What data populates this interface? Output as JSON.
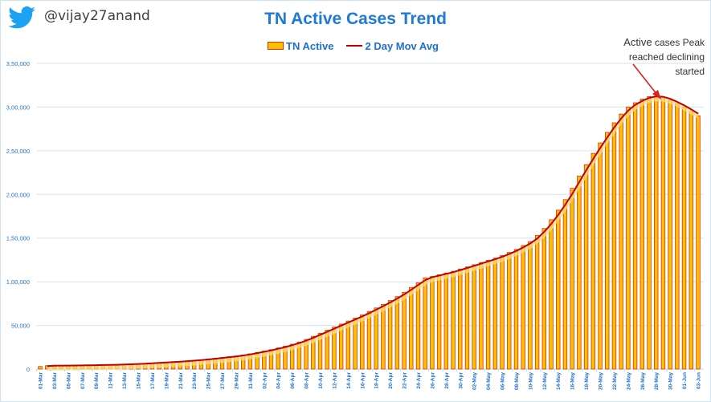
{
  "header": {
    "twitter_handle": "@vijay27anand",
    "icon": "twitter-bird-icon"
  },
  "colors": {
    "title": "#1e7ad6",
    "bar_fill": "#ffc000",
    "bar_edge": "#e03010",
    "line": "#c00000",
    "grid": "#cfe3f5",
    "axis_text": "#1e6fd0",
    "arrow": "#e02020"
  },
  "annotation": {
    "line1_a": "Active",
    "line1_b": " cases Peak",
    "line2": "reached declining started"
  },
  "legend": {
    "bar_label": "TN  Active",
    "line_label": "2 Day Mov Avg"
  },
  "chart_data": {
    "type": "bar",
    "title": "TN Active Cases Trend",
    "xlabel": "",
    "ylabel": "",
    "ylim": [
      0,
      350000
    ],
    "yticks": [
      0,
      50000,
      100000,
      150000,
      200000,
      250000,
      300000,
      350000
    ],
    "ytick_labels": [
      "0",
      "50,000",
      "1,00,000",
      "1,50,000",
      "2,00,000",
      "2,50,000",
      "3,00,000",
      "3,50,000"
    ],
    "grid": true,
    "legend_position": "top-center",
    "start_date": "01-Mar",
    "end_date": "03-Jun",
    "xtick_labels": [
      "01-Mar",
      "03-Mar",
      "05-Mar",
      "07-Mar",
      "09-Mar",
      "11-Mar",
      "13-Mar",
      "15-Mar",
      "17-Mar",
      "19-Mar",
      "21-Mar",
      "23-Mar",
      "25-Mar",
      "27-Mar",
      "29-Mar",
      "31-Mar",
      "02-Apr",
      "04-Apr",
      "06-Apr",
      "08-Apr",
      "10-Apr",
      "12-Apr",
      "14-Apr",
      "16-Apr",
      "18-Apr",
      "20-Apr",
      "22-Apr",
      "24-Apr",
      "26-Apr",
      "28-Apr",
      "30-Apr",
      "02-May",
      "04-May",
      "06-May",
      "08-May",
      "10-May",
      "12-May",
      "14-May",
      "16-May",
      "18-May",
      "20-May",
      "22-May",
      "24-May",
      "26-May",
      "28-May",
      "30-May",
      "01-Jun",
      "03-Jun"
    ],
    "series": [
      {
        "name": "TN  Active",
        "type": "bar",
        "values": [
          3600,
          3700,
          3800,
          3800,
          3900,
          3900,
          4000,
          4000,
          4100,
          4200,
          4300,
          4400,
          4600,
          4700,
          4900,
          5100,
          5400,
          5700,
          6000,
          6400,
          6900,
          7400,
          7800,
          8300,
          8800,
          9300,
          9900,
          10600,
          11400,
          12300,
          13200,
          14100,
          15000,
          16200,
          17500,
          19000,
          20600,
          22300,
          24200,
          26200,
          28500,
          31000,
          34000,
          37500,
          41000,
          44500,
          48000,
          51500,
          55000,
          58500,
          62000,
          66000,
          70000,
          74000,
          78500,
          83000,
          88000,
          93500,
          99000,
          104500,
          106000,
          108000,
          110000,
          112000,
          114500,
          117000,
          119500,
          122000,
          124500,
          127000,
          130000,
          133500,
          137000,
          141500,
          146000,
          153000,
          161000,
          171000,
          182000,
          194000,
          207000,
          221000,
          234000,
          247000,
          259000,
          271000,
          282000,
          292000,
          300000,
          305000,
          309000,
          312000,
          312500,
          311000,
          308000,
          304000,
          300000,
          295000,
          290000
        ],
        "note": "01-Mar bar starts low; values estimated from gridlines"
      },
      {
        "name": "2 Day Mov Avg",
        "type": "line",
        "values": "two-day moving average of the active series"
      }
    ]
  }
}
